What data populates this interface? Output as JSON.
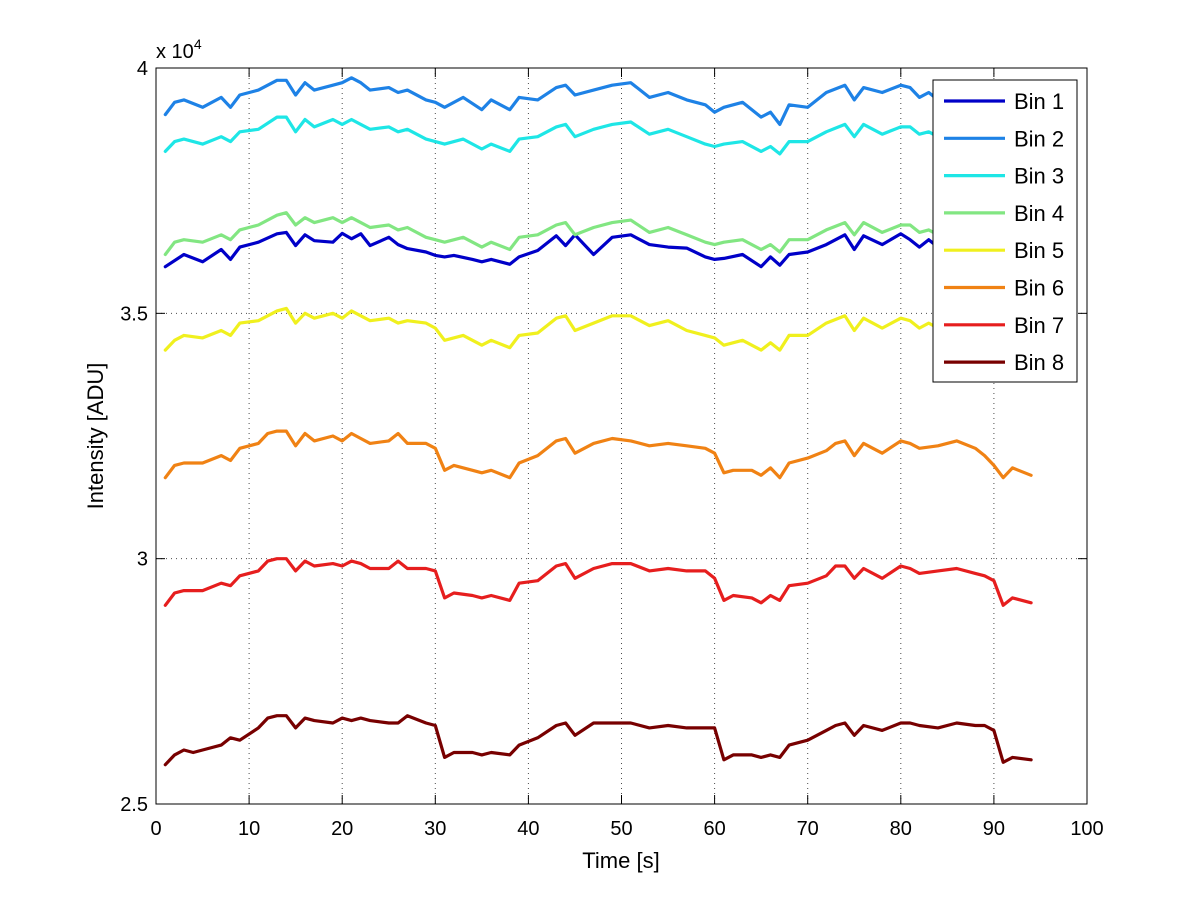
{
  "chart_data": {
    "type": "line",
    "xlabel": "Time [s]",
    "ylabel": "Intensity [ADU]",
    "xlim": [
      0,
      100
    ],
    "ylim": [
      25000,
      40000
    ],
    "xticks": [
      0,
      10,
      20,
      30,
      40,
      50,
      60,
      70,
      80,
      90,
      100
    ],
    "xtick_labels": [
      "0",
      "10",
      "20",
      "30",
      "40",
      "50",
      "60",
      "70",
      "80",
      "90",
      "100"
    ],
    "yticks": [
      25000,
      30000,
      35000,
      40000
    ],
    "ytick_labels": [
      "2.5",
      "3",
      "3.5",
      "4"
    ],
    "y_exponent_label": "x 10",
    "y_exponent_power": "4",
    "grid": true,
    "legend_position": "top-right",
    "series": [
      {
        "name": "Bin 1",
        "color": "#0000c8",
        "x": [
          1,
          3,
          5,
          7,
          8,
          9,
          11,
          13,
          14,
          15,
          16,
          17,
          19,
          20,
          21,
          22,
          23,
          25,
          26,
          27,
          29,
          30,
          31,
          32,
          34,
          35,
          36,
          38,
          39,
          41,
          43,
          44,
          45,
          47,
          49,
          51,
          53,
          55,
          57,
          59,
          60,
          61,
          63,
          65,
          66,
          67,
          68,
          70,
          72,
          74,
          75,
          76,
          78,
          80,
          81,
          82,
          83,
          84
        ],
        "y": [
          35950,
          36200,
          36050,
          36300,
          36100,
          36350,
          36450,
          36620,
          36650,
          36380,
          36600,
          36480,
          36450,
          36630,
          36520,
          36620,
          36380,
          36550,
          36400,
          36320,
          36250,
          36180,
          36150,
          36180,
          36100,
          36050,
          36100,
          36000,
          36150,
          36280,
          36580,
          36380,
          36600,
          36200,
          36550,
          36600,
          36400,
          36350,
          36330,
          36150,
          36100,
          36120,
          36200,
          35950,
          36150,
          35980,
          36200,
          36250,
          36400,
          36600,
          36300,
          36580,
          36400,
          36620,
          36500,
          36350,
          36500,
          36350
        ]
      },
      {
        "name": "Bin 2",
        "color": "#1e82e6",
        "x": [
          1,
          2,
          3,
          5,
          7,
          8,
          9,
          11,
          13,
          14,
          15,
          16,
          17,
          19,
          20,
          21,
          22,
          23,
          25,
          26,
          27,
          29,
          30,
          31,
          33,
          35,
          36,
          38,
          39,
          41,
          43,
          44,
          45,
          47,
          49,
          51,
          53,
          55,
          57,
          59,
          60,
          61,
          63,
          65,
          66,
          67,
          68,
          70,
          72,
          74,
          75,
          76,
          78,
          80,
          81,
          82,
          83,
          84
        ],
        "y": [
          39050,
          39300,
          39350,
          39200,
          39400,
          39200,
          39450,
          39550,
          39750,
          39750,
          39450,
          39700,
          39550,
          39650,
          39700,
          39800,
          39700,
          39550,
          39600,
          39500,
          39550,
          39350,
          39300,
          39200,
          39400,
          39150,
          39350,
          39150,
          39400,
          39350,
          39600,
          39650,
          39450,
          39550,
          39650,
          39700,
          39400,
          39500,
          39350,
          39250,
          39100,
          39200,
          39300,
          39000,
          39100,
          38850,
          39250,
          39200,
          39500,
          39650,
          39350,
          39600,
          39500,
          39650,
          39600,
          39400,
          39500,
          39350
        ]
      },
      {
        "name": "Bin 3",
        "color": "#1ee6e6",
        "x": [
          1,
          2,
          3,
          5,
          7,
          8,
          9,
          11,
          13,
          14,
          15,
          16,
          17,
          19,
          20,
          21,
          22,
          23,
          25,
          26,
          27,
          29,
          30,
          31,
          33,
          35,
          36,
          38,
          39,
          41,
          43,
          44,
          45,
          47,
          49,
          51,
          53,
          55,
          57,
          59,
          60,
          61,
          63,
          65,
          66,
          67,
          68,
          70,
          72,
          74,
          75,
          76,
          78,
          80,
          81,
          82,
          83,
          84
        ],
        "y": [
          38300,
          38500,
          38550,
          38450,
          38600,
          38500,
          38700,
          38750,
          39000,
          39000,
          38700,
          38950,
          38800,
          38950,
          38850,
          38950,
          38850,
          38750,
          38800,
          38700,
          38750,
          38550,
          38500,
          38450,
          38550,
          38350,
          38450,
          38300,
          38550,
          38600,
          38800,
          38850,
          38600,
          38750,
          38850,
          38900,
          38650,
          38750,
          38600,
          38450,
          38400,
          38450,
          38500,
          38300,
          38400,
          38250,
          38500,
          38500,
          38700,
          38850,
          38600,
          38850,
          38650,
          38800,
          38800,
          38650,
          38700,
          38600
        ]
      },
      {
        "name": "Bin 4",
        "color": "#82e682",
        "x": [
          1,
          2,
          3,
          5,
          7,
          8,
          9,
          11,
          13,
          14,
          15,
          16,
          17,
          19,
          20,
          21,
          22,
          23,
          25,
          26,
          27,
          29,
          30,
          31,
          33,
          35,
          36,
          38,
          39,
          41,
          43,
          44,
          45,
          47,
          49,
          51,
          53,
          55,
          57,
          59,
          60,
          61,
          63,
          65,
          66,
          67,
          68,
          70,
          72,
          74,
          75,
          76,
          78,
          80,
          81,
          82,
          83,
          84
        ],
        "y": [
          36200,
          36450,
          36500,
          36450,
          36600,
          36500,
          36700,
          36800,
          37000,
          37050,
          36800,
          36950,
          36850,
          36950,
          36850,
          36950,
          36850,
          36750,
          36800,
          36700,
          36750,
          36550,
          36500,
          36450,
          36550,
          36350,
          36450,
          36300,
          36550,
          36600,
          36800,
          36850,
          36600,
          36750,
          36850,
          36900,
          36650,
          36750,
          36600,
          36450,
          36400,
          36450,
          36500,
          36300,
          36400,
          36250,
          36500,
          36500,
          36700,
          36850,
          36600,
          36850,
          36650,
          36800,
          36800,
          36650,
          36700,
          36600
        ]
      },
      {
        "name": "Bin 5",
        "color": "#f0f01e",
        "x": [
          1,
          2,
          3,
          5,
          7,
          8,
          9,
          11,
          13,
          14,
          15,
          16,
          17,
          19,
          20,
          21,
          22,
          23,
          25,
          26,
          27,
          29,
          30,
          31,
          33,
          35,
          36,
          38,
          39,
          41,
          43,
          44,
          45,
          47,
          49,
          51,
          53,
          55,
          57,
          59,
          60,
          61,
          63,
          65,
          66,
          67,
          68,
          70,
          72,
          74,
          75,
          76,
          78,
          80,
          81,
          82,
          83,
          84
        ],
        "y": [
          34250,
          34450,
          34550,
          34500,
          34650,
          34550,
          34800,
          34850,
          35050,
          35100,
          34800,
          35000,
          34900,
          35000,
          34900,
          35050,
          34950,
          34850,
          34900,
          34800,
          34850,
          34800,
          34700,
          34450,
          34550,
          34350,
          34450,
          34300,
          34550,
          34600,
          34900,
          34950,
          34650,
          34800,
          34950,
          34950,
          34750,
          34850,
          34650,
          34550,
          34500,
          34350,
          34450,
          34250,
          34400,
          34250,
          34550,
          34550,
          34800,
          34950,
          34650,
          34900,
          34700,
          34900,
          34850,
          34700,
          34800,
          34700
        ]
      },
      {
        "name": "Bin 6",
        "color": "#f08214",
        "x": [
          1,
          2,
          3,
          5,
          7,
          8,
          9,
          11,
          12,
          13,
          14,
          15,
          16,
          17,
          19,
          20,
          21,
          22,
          23,
          25,
          26,
          27,
          29,
          30,
          31,
          32,
          34,
          35,
          36,
          38,
          39,
          41,
          43,
          44,
          45,
          47,
          49,
          51,
          53,
          55,
          57,
          59,
          60,
          61,
          62,
          64,
          65,
          66,
          67,
          68,
          70,
          72,
          73,
          74,
          75,
          76,
          78,
          80,
          81,
          82,
          84,
          86,
          88,
          89,
          90,
          91,
          92,
          94
        ],
        "y": [
          31650,
          31900,
          31950,
          31950,
          32100,
          32000,
          32250,
          32350,
          32550,
          32600,
          32600,
          32300,
          32550,
          32400,
          32500,
          32400,
          32550,
          32450,
          32350,
          32400,
          32550,
          32350,
          32350,
          32250,
          31800,
          31900,
          31800,
          31750,
          31800,
          31650,
          31950,
          32100,
          32400,
          32450,
          32150,
          32350,
          32450,
          32400,
          32300,
          32350,
          32300,
          32250,
          32150,
          31750,
          31800,
          31800,
          31700,
          31850,
          31650,
          31950,
          32050,
          32200,
          32350,
          32400,
          32100,
          32350,
          32150,
          32400,
          32350,
          32250,
          32300,
          32400,
          32250,
          32100,
          31900,
          31650,
          31850,
          31700
        ]
      },
      {
        "name": "Bin 7",
        "color": "#e61e1e",
        "x": [
          1,
          2,
          3,
          5,
          7,
          8,
          9,
          11,
          12,
          13,
          14,
          15,
          16,
          17,
          19,
          20,
          21,
          22,
          23,
          25,
          26,
          27,
          29,
          30,
          31,
          32,
          34,
          35,
          36,
          38,
          39,
          41,
          43,
          44,
          45,
          47,
          49,
          51,
          53,
          55,
          57,
          59,
          60,
          61,
          62,
          64,
          65,
          66,
          67,
          68,
          70,
          72,
          73,
          74,
          75,
          76,
          78,
          80,
          81,
          82,
          84,
          86,
          88,
          89,
          90,
          91,
          92,
          94
        ],
        "y": [
          29050,
          29300,
          29350,
          29350,
          29500,
          29450,
          29650,
          29750,
          29950,
          30000,
          30000,
          29750,
          29950,
          29850,
          29900,
          29850,
          29950,
          29900,
          29800,
          29800,
          29950,
          29800,
          29800,
          29750,
          29200,
          29300,
          29250,
          29200,
          29250,
          29150,
          29500,
          29550,
          29850,
          29900,
          29600,
          29800,
          29900,
          29900,
          29750,
          29800,
          29750,
          29750,
          29600,
          29150,
          29250,
          29200,
          29100,
          29250,
          29150,
          29450,
          29500,
          29650,
          29850,
          29850,
          29600,
          29800,
          29600,
          29850,
          29800,
          29700,
          29750,
          29800,
          29700,
          29650,
          29550,
          29050,
          29200,
          29100
        ]
      },
      {
        "name": "Bin 8",
        "color": "#780000",
        "x": [
          1,
          2,
          3,
          4,
          5,
          7,
          8,
          9,
          11,
          12,
          13,
          14,
          15,
          16,
          17,
          19,
          20,
          21,
          22,
          23,
          25,
          26,
          27,
          29,
          30,
          31,
          32,
          34,
          35,
          36,
          38,
          39,
          41,
          43,
          44,
          45,
          47,
          49,
          51,
          53,
          55,
          57,
          59,
          60,
          61,
          62,
          64,
          65,
          66,
          67,
          68,
          70,
          72,
          73,
          74,
          75,
          76,
          78,
          80,
          81,
          82,
          84,
          86,
          88,
          89,
          90,
          91,
          92,
          94
        ],
        "y": [
          25800,
          26000,
          26100,
          26050,
          26100,
          26200,
          26350,
          26300,
          26550,
          26750,
          26800,
          26800,
          26550,
          26750,
          26700,
          26650,
          26750,
          26700,
          26750,
          26700,
          26650,
          26650,
          26800,
          26650,
          26600,
          25950,
          26050,
          26050,
          26000,
          26050,
          26000,
          26200,
          26350,
          26600,
          26650,
          26400,
          26650,
          26650,
          26650,
          26550,
          26600,
          26550,
          26550,
          26550,
          25900,
          26000,
          26000,
          25950,
          26000,
          25950,
          26200,
          26300,
          26500,
          26600,
          26650,
          26400,
          26600,
          26500,
          26650,
          26650,
          26600,
          26550,
          26650,
          26600,
          26600,
          26500,
          25850,
          25950,
          25900
        ]
      }
    ]
  }
}
